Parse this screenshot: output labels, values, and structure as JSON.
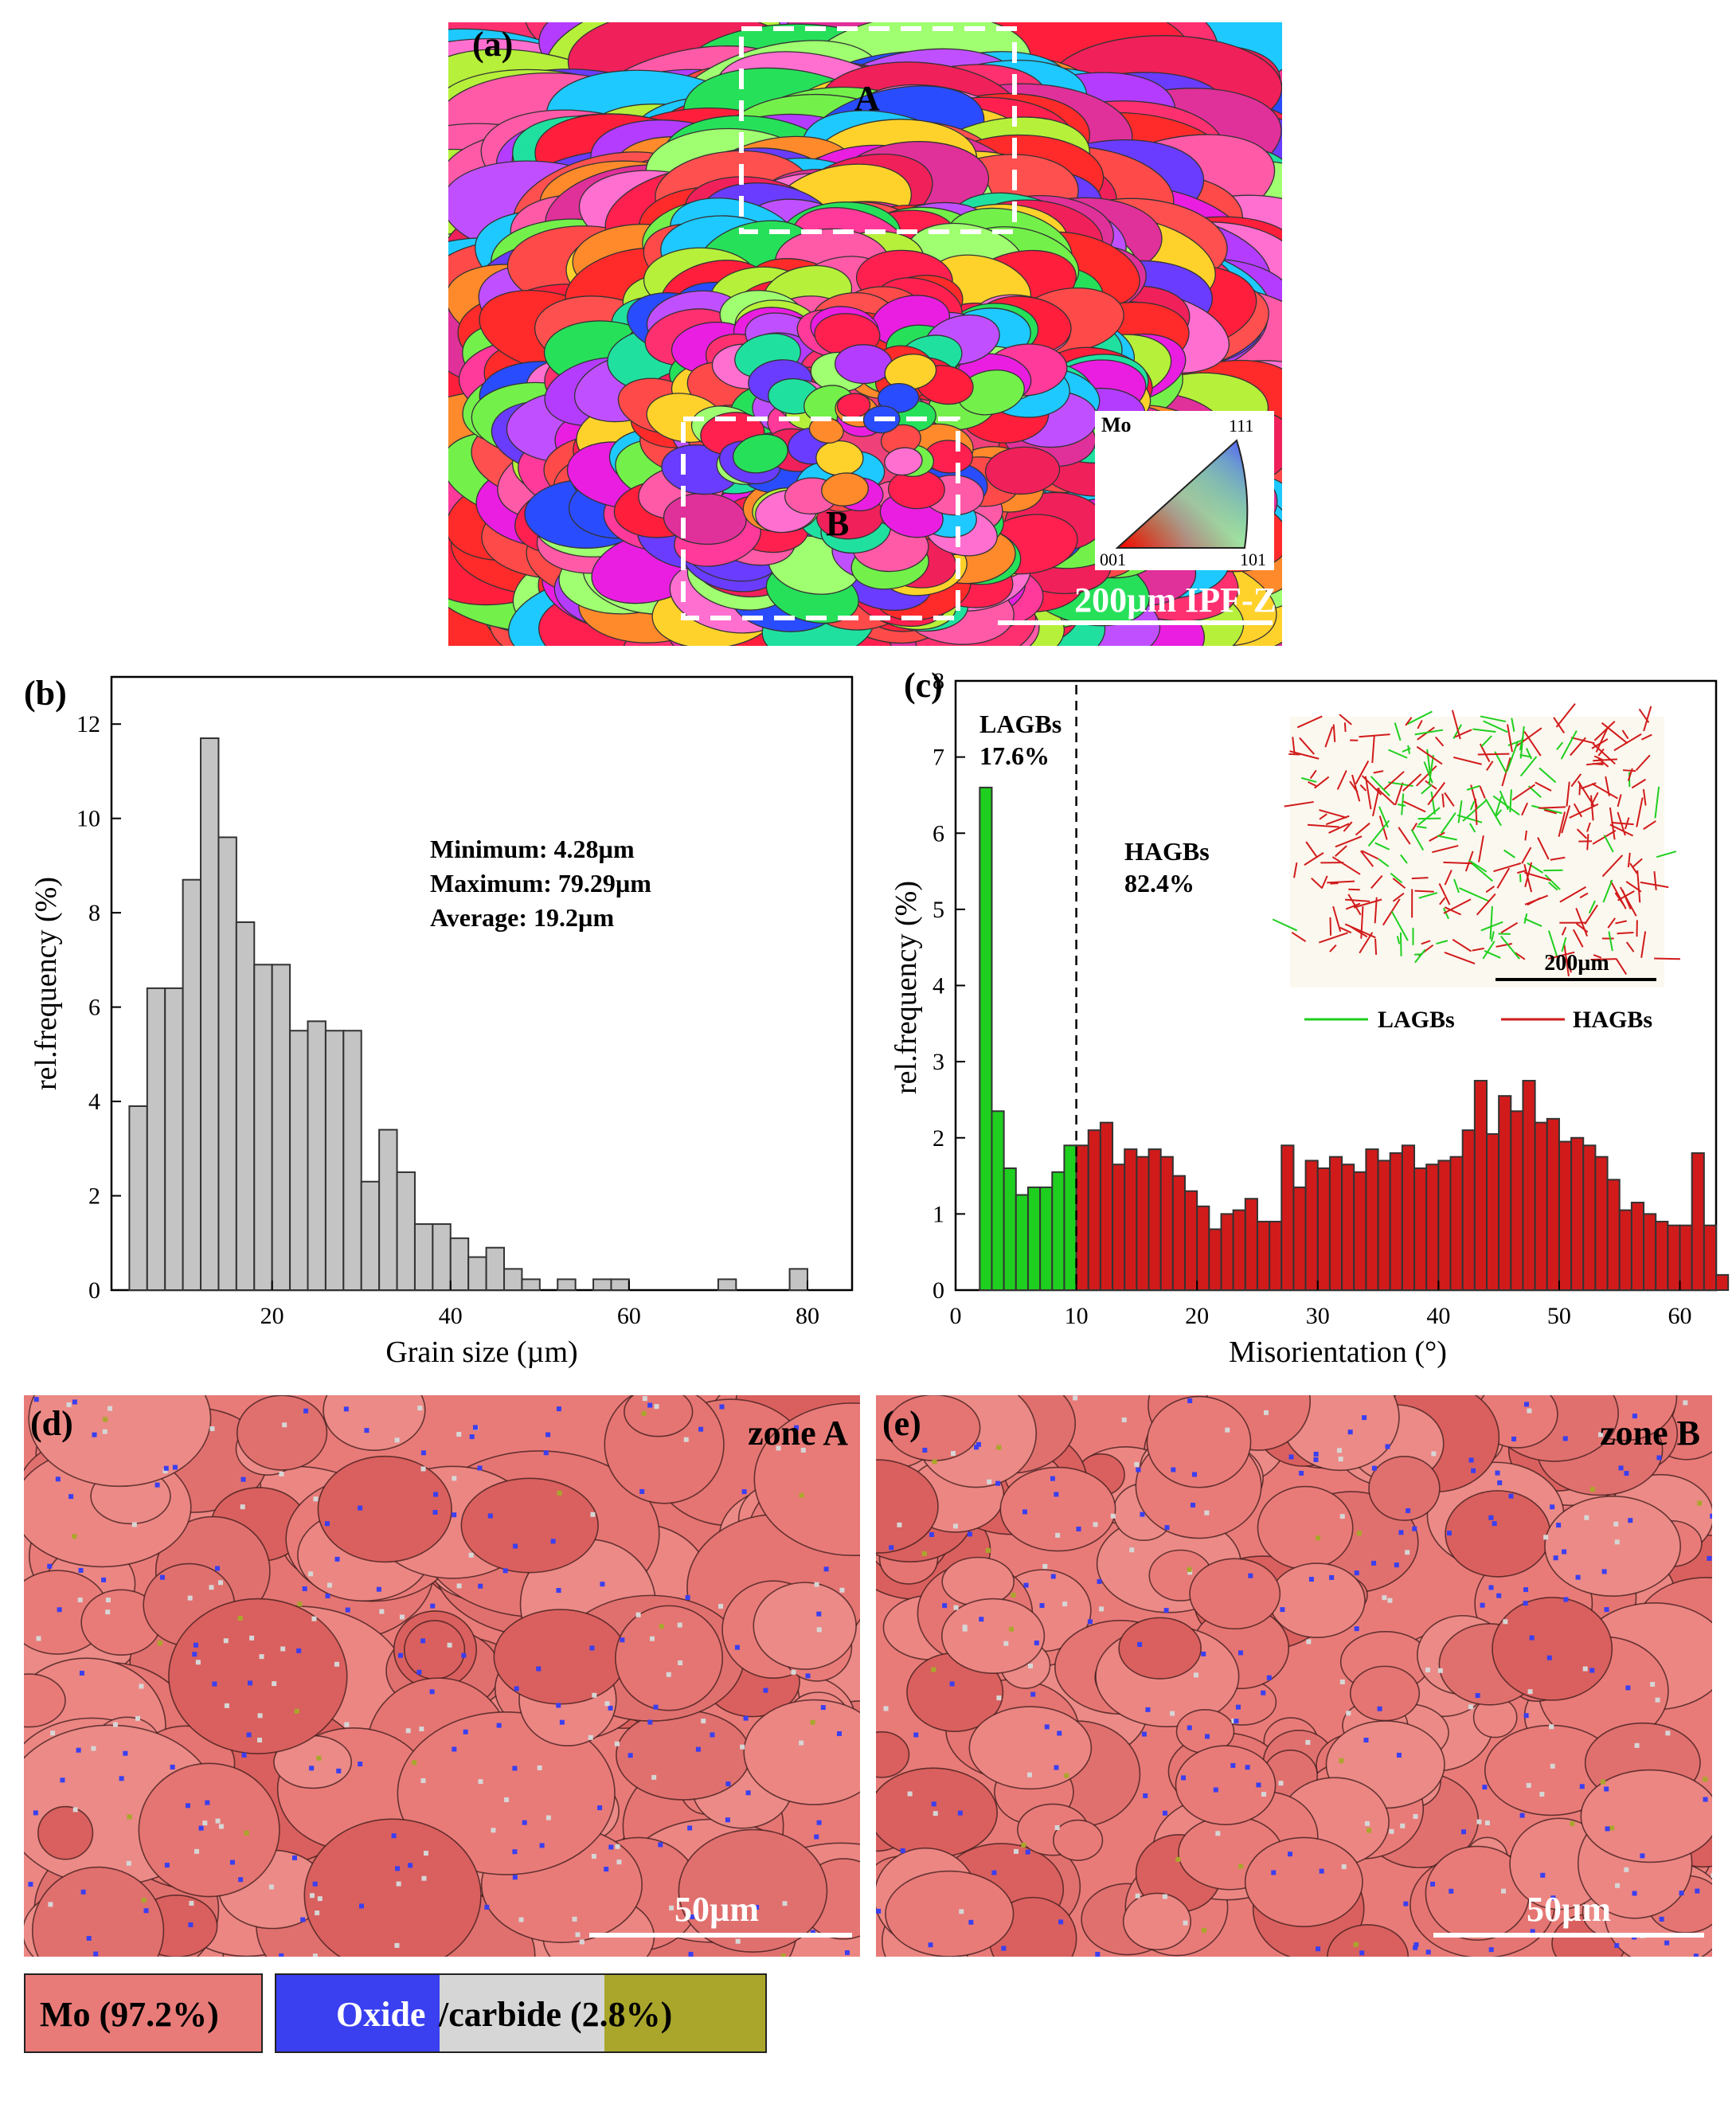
{
  "panel_a": {
    "label": "(a)",
    "zone_a_label": "A",
    "zone_b_label": "B",
    "key_title": "Mo",
    "key_111": "111",
    "key_001": "001",
    "key_101": "101",
    "scale_text": "200µm IPF-Z"
  },
  "panel_d": {
    "label": "(d)",
    "zone": "zone  A",
    "scale": "50µm"
  },
  "panel_e": {
    "label": "(e)",
    "zone": "zone  B",
    "scale": "50µm"
  },
  "phase_legend": {
    "mo": "Mo (97.2%)",
    "oxide": "Oxide",
    "carbide": "/carbide (2.8%)"
  },
  "colors": {
    "mo": "#e87b78",
    "oxide": "#3a3ff0",
    "carbide": "#d6d6d6",
    "other": "#aaa62c",
    "lagb": "#1fcf1f",
    "hagb": "#d11b1b"
  },
  "chart_data": [
    {
      "type": "bar",
      "panel_label": "(b)",
      "xlabel": "Grain size (µm)",
      "ylabel": "rel.frequency (%)",
      "xlim": [
        2,
        85
      ],
      "ylim": [
        0,
        13
      ],
      "xticks": [
        20,
        40,
        60,
        80
      ],
      "yticks": [
        0,
        2,
        4,
        6,
        8,
        10,
        12
      ],
      "bin_width": 2,
      "x": [
        5,
        7,
        9,
        11,
        13,
        15,
        17,
        19,
        21,
        23,
        25,
        27,
        29,
        31,
        33,
        35,
        37,
        39,
        41,
        43,
        45,
        47,
        49,
        53,
        57,
        59,
        71,
        79
      ],
      "values": [
        3.9,
        6.4,
        6.4,
        8.7,
        11.7,
        9.6,
        7.8,
        6.9,
        6.9,
        5.5,
        5.7,
        5.5,
        5.5,
        2.3,
        3.4,
        2.5,
        1.4,
        1.4,
        1.1,
        0.7,
        0.9,
        0.45,
        0.23,
        0.23,
        0.23,
        0.23,
        0.23,
        0.45
      ],
      "stats": [
        "Minimum:  4.28µm",
        "Maximum:  79.29µm",
        "Average:  19.2µm"
      ]
    },
    {
      "type": "bar",
      "panel_label": "(c)",
      "xlabel": "Misorientation (°)",
      "ylabel": "rel.frequency (%)",
      "xlim": [
        0,
        63
      ],
      "ylim": [
        0,
        8
      ],
      "xticks": [
        0,
        10,
        20,
        30,
        40,
        50,
        60
      ],
      "yticks": [
        0,
        1,
        2,
        3,
        4,
        5,
        6,
        7,
        8
      ],
      "threshold": 10,
      "x_start": 2,
      "bin_width": 1,
      "values": [
        6.6,
        2.35,
        1.6,
        1.25,
        1.35,
        1.35,
        1.55,
        1.9,
        1.9,
        2.1,
        2.2,
        1.65,
        1.85,
        1.75,
        1.85,
        1.75,
        1.5,
        1.3,
        1.1,
        0.8,
        1.0,
        1.05,
        1.2,
        0.9,
        0.9,
        1.9,
        1.35,
        1.7,
        1.6,
        1.75,
        1.65,
        1.55,
        1.85,
        1.7,
        1.8,
        1.9,
        1.6,
        1.65,
        1.7,
        1.75,
        2.1,
        2.75,
        2.05,
        2.55,
        2.35,
        2.75,
        2.2,
        2.25,
        1.95,
        2.0,
        1.9,
        1.75,
        1.45,
        1.05,
        1.15,
        1.0,
        0.9,
        0.85,
        0.85,
        1.8,
        0.85,
        0.2
      ],
      "lagb_label": "LAGBs",
      "lagb_pct": "17.6%",
      "hagb_label": "HAGBs",
      "hagb_pct": "82.4%",
      "inset_scale": "200µm",
      "inset_legend": [
        "LAGBs",
        "HAGBs"
      ]
    }
  ]
}
